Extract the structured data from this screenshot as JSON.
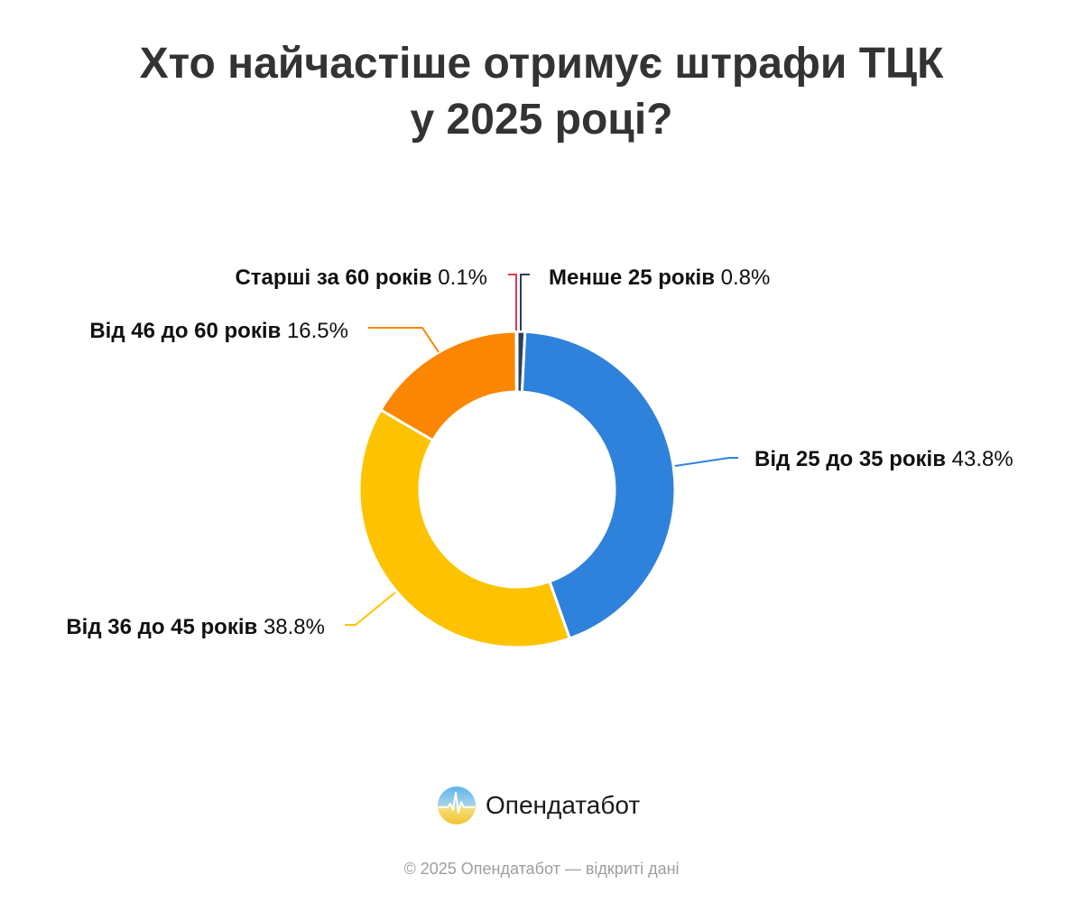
{
  "title_line1": "Хто найчастіше отримує штрафи ТЦК",
  "title_line2": "у 2025 році?",
  "brand": {
    "name": "Опендатабот",
    "logo_icon": "opendatabot-logo-icon"
  },
  "footer": "© 2025 Опендатабот — відкриті дані",
  "chart_data": {
    "type": "pie",
    "variant": "donut",
    "title": "Хто найчастіше отримує штрафи ТЦК у 2025 році?",
    "categories": [
      "Менше 25 років",
      "Від 25 до 35 років",
      "Від 36 до 45 років",
      "Від 46 до 60 років",
      "Старші за 60 років"
    ],
    "values": [
      0.8,
      43.8,
      38.8,
      16.5,
      0.1
    ],
    "unit": "%",
    "colors": [
      "#2d3e5c",
      "#2f82db",
      "#fdc300",
      "#fa8603",
      "#e0384a"
    ],
    "labels": [
      {
        "name": "Менше 25 років",
        "value": "0.8%"
      },
      {
        "name": "Від 25 до 35 років",
        "value": "43.8%"
      },
      {
        "name": "Від 36 до 45 років",
        "value": "38.8%"
      },
      {
        "name": "Від 46 до 60 років",
        "value": "16.5%"
      },
      {
        "name": "Старші за 60 років",
        "value": "0.1%"
      }
    ],
    "start_angle": "top, clockwise",
    "legend": "data labels with leader lines"
  }
}
